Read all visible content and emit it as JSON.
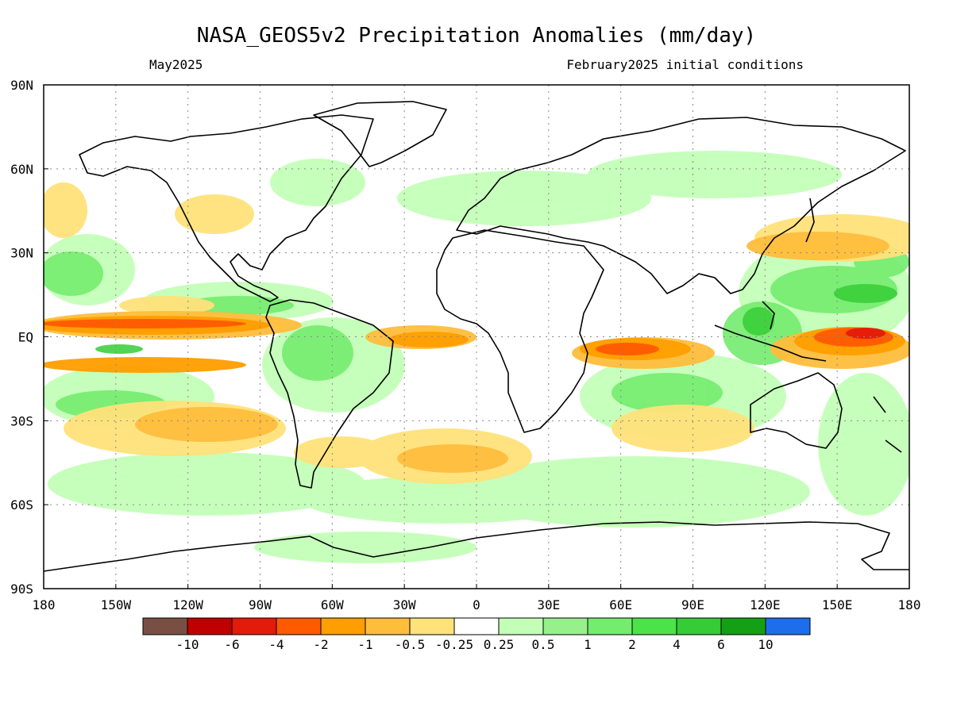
{
  "title": "NASA_GEOS5v2 Precipitation Anomalies (mm/day)",
  "subtitle_left": "May2025",
  "subtitle_right": "February2025 initial conditions",
  "map": {
    "lon_range": [
      -180,
      180
    ],
    "lat_range": [
      -90,
      90
    ],
    "grid": true,
    "x_ticks": [
      {
        "value": -180,
        "label": "180"
      },
      {
        "value": -150,
        "label": "150W"
      },
      {
        "value": -120,
        "label": "120W"
      },
      {
        "value": -90,
        "label": "90W"
      },
      {
        "value": -60,
        "label": "60W"
      },
      {
        "value": -30,
        "label": "30W"
      },
      {
        "value": 0,
        "label": "0"
      },
      {
        "value": 30,
        "label": "30E"
      },
      {
        "value": 60,
        "label": "60E"
      },
      {
        "value": 90,
        "label": "90E"
      },
      {
        "value": 120,
        "label": "120E"
      },
      {
        "value": 150,
        "label": "150E"
      },
      {
        "value": 180,
        "label": "180"
      }
    ],
    "y_ticks": [
      {
        "value": 90,
        "label": "90N"
      },
      {
        "value": 60,
        "label": "60N"
      },
      {
        "value": 30,
        "label": "30N"
      },
      {
        "value": 0,
        "label": "EQ"
      },
      {
        "value": -30,
        "label": "30S"
      },
      {
        "value": -60,
        "label": "60S"
      },
      {
        "value": -90,
        "label": "90S"
      }
    ]
  },
  "legend": {
    "colors": [
      "#7a4f43",
      "#c00000",
      "#e41a0a",
      "#ff5a00",
      "#ff9e00",
      "#ffbd3c",
      "#ffe27a",
      "#ffffff",
      "#c4ffb8",
      "#98f08c",
      "#74ec6e",
      "#4ce34a",
      "#36cc36",
      "#14a014",
      "#1e6eeb"
    ],
    "labels": [
      "-10",
      "-6",
      "-4",
      "-2",
      "-1",
      "-0.5",
      "-0.25",
      "0.25",
      "0.5",
      "1",
      "2",
      "4",
      "6",
      "10"
    ]
  }
}
